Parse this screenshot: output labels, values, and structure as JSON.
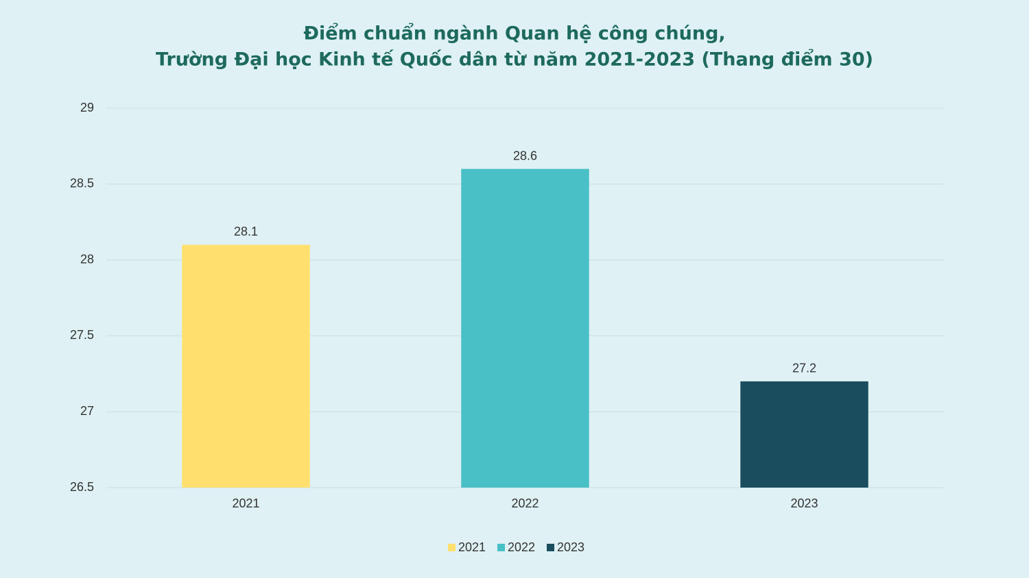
{
  "chart_data": {
    "type": "bar",
    "title": [
      "Điểm chuẩn ngành Quan hệ công chúng,",
      "Trường Đại học Kinh tế Quốc dân từ năm 2021-2023 (Thang điểm 30)"
    ],
    "categories": [
      "2021",
      "2022",
      "2023"
    ],
    "values": [
      28.1,
      28.6,
      27.2
    ],
    "colors": [
      "#ffe06e",
      "#48c0c6",
      "#1a4d5e"
    ],
    "ylim": [
      26.5,
      29
    ],
    "yticks": [
      26.5,
      27,
      27.5,
      28,
      28.5,
      29
    ],
    "grid": true,
    "legend": "bottom"
  }
}
